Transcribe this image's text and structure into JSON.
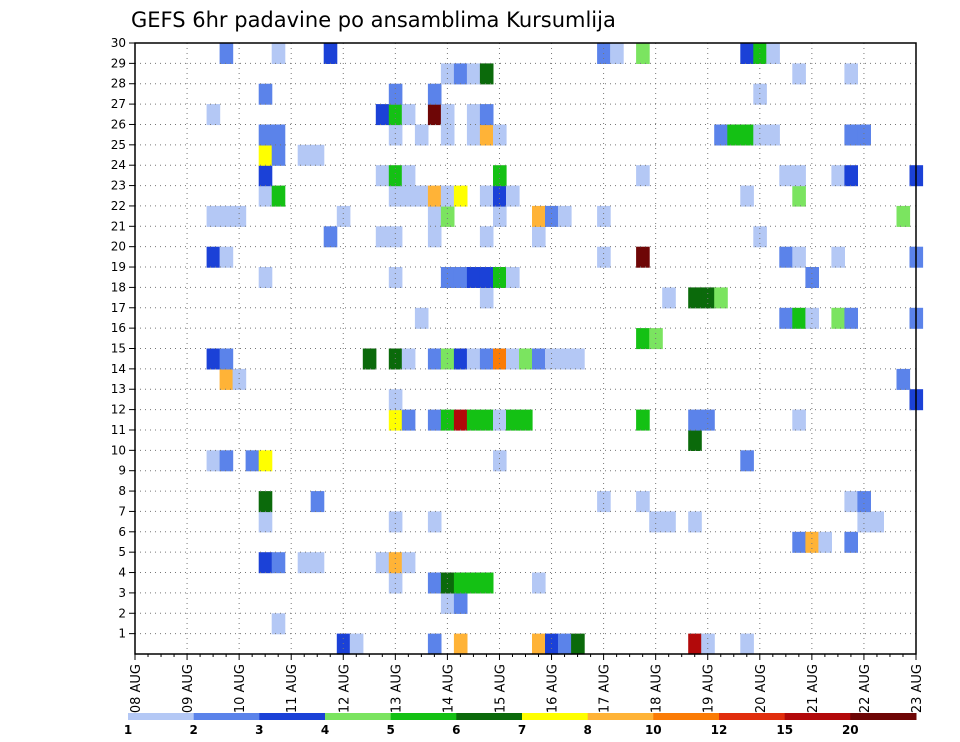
{
  "chart_data": {
    "type": "heatmap",
    "title": "GEFS 6hr padavine po ansamblima Kursumlija",
    "xlabel": "",
    "ylabel": "",
    "x_ticks": [
      "08 AUG",
      "09 AUG",
      "10 AUG",
      "11 AUG",
      "12 AUG",
      "13 AUG",
      "14 AUG",
      "15 AUG",
      "16 AUG",
      "17 AUG",
      "18 AUG",
      "19 AUG",
      "20 AUG",
      "21 AUG",
      "22 AUG",
      "23 AUG"
    ],
    "y_ticks": [
      1,
      2,
      3,
      4,
      5,
      6,
      7,
      8,
      9,
      10,
      11,
      12,
      13,
      14,
      15,
      16,
      17,
      18,
      19,
      20,
      21,
      22,
      23,
      24,
      25,
      26,
      27,
      28,
      29,
      30
    ],
    "xlim_days": [
      0,
      15
    ],
    "ylim": [
      0,
      30
    ],
    "grid": true,
    "colorbar": {
      "levels": [
        1,
        2,
        3,
        4,
        5,
        6,
        7,
        8,
        10,
        12,
        15,
        20
      ],
      "colors": [
        "#b4c8f5",
        "#5b83ea",
        "#1b41d7",
        "#7be460",
        "#14c114",
        "#0b6a0b",
        "#ffff00",
        "#ffb337",
        "#fb7c06",
        "#e12e0d",
        "#b2090a",
        "#6e0606"
      ]
    },
    "cells": [
      [
        4,
        0,
        2
      ],
      [
        4.25,
        0,
        0
      ],
      [
        5.75,
        0,
        1
      ],
      [
        6.25,
        0,
        7
      ],
      [
        7.75,
        0,
        7
      ],
      [
        8,
        0,
        2
      ],
      [
        8.25,
        0,
        1
      ],
      [
        8.5,
        0,
        5
      ],
      [
        10.75,
        0,
        10
      ],
      [
        11,
        0,
        0
      ],
      [
        11.75,
        0,
        0
      ],
      [
        2.75,
        1,
        0
      ],
      [
        6,
        2,
        0
      ],
      [
        6.25,
        2,
        1
      ],
      [
        5,
        3,
        0
      ],
      [
        5.75,
        3,
        1
      ],
      [
        6,
        3,
        5
      ],
      [
        6.25,
        3,
        4
      ],
      [
        6.5,
        3,
        4
      ],
      [
        6.75,
        3,
        4
      ],
      [
        7.75,
        3,
        0
      ],
      [
        2.5,
        4,
        2
      ],
      [
        2.75,
        4,
        1
      ],
      [
        3.25,
        4,
        0
      ],
      [
        3.5,
        4,
        0
      ],
      [
        4.75,
        4,
        0
      ],
      [
        5,
        4,
        7
      ],
      [
        5.25,
        4,
        0
      ],
      [
        12.75,
        5,
        1
      ],
      [
        13,
        5,
        7
      ],
      [
        13.25,
        5,
        0
      ],
      [
        13.75,
        5,
        1
      ],
      [
        2.5,
        6,
        0
      ],
      [
        5,
        6,
        0
      ],
      [
        5.75,
        6,
        0
      ],
      [
        10,
        6,
        0
      ],
      [
        10.25,
        6,
        0
      ],
      [
        10.75,
        6,
        0
      ],
      [
        14,
        6,
        0
      ],
      [
        14.25,
        6,
        0
      ],
      [
        2.5,
        7,
        5
      ],
      [
        3.5,
        7,
        1
      ],
      [
        9,
        7,
        0
      ],
      [
        9.75,
        7,
        0
      ],
      [
        13.75,
        7,
        0
      ],
      [
        14,
        7,
        1
      ],
      [
        1.5,
        9,
        0
      ],
      [
        1.75,
        9,
        1
      ],
      [
        2.25,
        9,
        1
      ],
      [
        2.5,
        9,
        6
      ],
      [
        7,
        9,
        0
      ],
      [
        11.75,
        9,
        1
      ],
      [
        10.75,
        10,
        5
      ],
      [
        5,
        11,
        6
      ],
      [
        5.25,
        11,
        1
      ],
      [
        5.75,
        11,
        1
      ],
      [
        6,
        11,
        4
      ],
      [
        6.25,
        11,
        10
      ],
      [
        6.5,
        11,
        4
      ],
      [
        6.75,
        11,
        4
      ],
      [
        7,
        11,
        0
      ],
      [
        7.25,
        11,
        4
      ],
      [
        7.5,
        11,
        4
      ],
      [
        9.75,
        11,
        4
      ],
      [
        10.75,
        11,
        1
      ],
      [
        11,
        11,
        1
      ],
      [
        12.75,
        11,
        0
      ],
      [
        5,
        12,
        0
      ],
      [
        15,
        12,
        2
      ],
      [
        1.75,
        13,
        7
      ],
      [
        2,
        13,
        0
      ],
      [
        14.75,
        13,
        1
      ],
      [
        1.5,
        14,
        2
      ],
      [
        1.75,
        14,
        1
      ],
      [
        4.5,
        14,
        5
      ],
      [
        5,
        14,
        5
      ],
      [
        5.25,
        14,
        0
      ],
      [
        5.75,
        14,
        1
      ],
      [
        6,
        14,
        3
      ],
      [
        6.25,
        14,
        2
      ],
      [
        6.5,
        14,
        0
      ],
      [
        6.75,
        14,
        1
      ],
      [
        7,
        14,
        8
      ],
      [
        7.25,
        14,
        0
      ],
      [
        7.5,
        14,
        3
      ],
      [
        7.75,
        14,
        1
      ],
      [
        8,
        14,
        0
      ],
      [
        8.25,
        14,
        0
      ],
      [
        8.5,
        14,
        0
      ],
      [
        9.75,
        15,
        4
      ],
      [
        10,
        15,
        3
      ],
      [
        5.5,
        16,
        0
      ],
      [
        12.5,
        16,
        1
      ],
      [
        12.75,
        16,
        4
      ],
      [
        13,
        16,
        0
      ],
      [
        13.5,
        16,
        3
      ],
      [
        13.75,
        16,
        1
      ],
      [
        15,
        16,
        1
      ],
      [
        6.75,
        17,
        0
      ],
      [
        10.25,
        17,
        0
      ],
      [
        10.75,
        17,
        5
      ],
      [
        11,
        17,
        5
      ],
      [
        11.25,
        17,
        3
      ],
      [
        2.5,
        18,
        0
      ],
      [
        5,
        18,
        0
      ],
      [
        6,
        18,
        1
      ],
      [
        6.25,
        18,
        1
      ],
      [
        6.5,
        18,
        2
      ],
      [
        6.75,
        18,
        2
      ],
      [
        7,
        18,
        4
      ],
      [
        7.25,
        18,
        0
      ],
      [
        13,
        18,
        1
      ],
      [
        1.5,
        19,
        2
      ],
      [
        1.75,
        19,
        0
      ],
      [
        9,
        19,
        0
      ],
      [
        9.75,
        19,
        11
      ],
      [
        12.5,
        19,
        1
      ],
      [
        12.75,
        19,
        0
      ],
      [
        13.5,
        19,
        0
      ],
      [
        15,
        19,
        1
      ],
      [
        3.75,
        20,
        1
      ],
      [
        4.75,
        20,
        0
      ],
      [
        5,
        20,
        0
      ],
      [
        5.75,
        20,
        0
      ],
      [
        6.75,
        20,
        0
      ],
      [
        7.75,
        20,
        0
      ],
      [
        12,
        20,
        0
      ],
      [
        1.5,
        21,
        0
      ],
      [
        1.75,
        21,
        0
      ],
      [
        2,
        21,
        0
      ],
      [
        4,
        21,
        0
      ],
      [
        5.75,
        21,
        0
      ],
      [
        6,
        21,
        3
      ],
      [
        7,
        21,
        0
      ],
      [
        7.75,
        21,
        7
      ],
      [
        8,
        21,
        1
      ],
      [
        8.25,
        21,
        0
      ],
      [
        9,
        21,
        0
      ],
      [
        14.75,
        21,
        3
      ],
      [
        2.5,
        22,
        0
      ],
      [
        2.75,
        22,
        4
      ],
      [
        5,
        22,
        0
      ],
      [
        5.25,
        22,
        0
      ],
      [
        5.5,
        22,
        0
      ],
      [
        5.75,
        22,
        7
      ],
      [
        6,
        22,
        0
      ],
      [
        6.25,
        22,
        6
      ],
      [
        6.75,
        22,
        0
      ],
      [
        7,
        22,
        2
      ],
      [
        7.25,
        22,
        0
      ],
      [
        11.75,
        22,
        0
      ],
      [
        12.75,
        22,
        3
      ],
      [
        2.5,
        23,
        2
      ],
      [
        4.75,
        23,
        0
      ],
      [
        5,
        23,
        4
      ],
      [
        5.25,
        23,
        0
      ],
      [
        7,
        23,
        4
      ],
      [
        9.75,
        23,
        0
      ],
      [
        12.5,
        23,
        0
      ],
      [
        12.75,
        23,
        0
      ],
      [
        13.5,
        23,
        0
      ],
      [
        13.75,
        23,
        2
      ],
      [
        15,
        23,
        2
      ],
      [
        2.5,
        24,
        6
      ],
      [
        2.75,
        24,
        1
      ],
      [
        3.25,
        24,
        0
      ],
      [
        3.5,
        24,
        0
      ],
      [
        2.5,
        25,
        1
      ],
      [
        2.75,
        25,
        1
      ],
      [
        5,
        25,
        0
      ],
      [
        5.5,
        25,
        0
      ],
      [
        6,
        25,
        0
      ],
      [
        6.5,
        25,
        0
      ],
      [
        6.75,
        25,
        7
      ],
      [
        7,
        25,
        0
      ],
      [
        11.25,
        25,
        1
      ],
      [
        11.5,
        25,
        4
      ],
      [
        11.75,
        25,
        4
      ],
      [
        12,
        25,
        0
      ],
      [
        12.25,
        25,
        0
      ],
      [
        13.75,
        25,
        1
      ],
      [
        14,
        25,
        1
      ],
      [
        1.5,
        26,
        0
      ],
      [
        4.75,
        26,
        2
      ],
      [
        5,
        26,
        4
      ],
      [
        5.25,
        26,
        0
      ],
      [
        5.75,
        26,
        11
      ],
      [
        6,
        26,
        0
      ],
      [
        6.5,
        26,
        0
      ],
      [
        6.75,
        26,
        1
      ],
      [
        2.5,
        27,
        1
      ],
      [
        5,
        27,
        1
      ],
      [
        5.75,
        27,
        1
      ],
      [
        12,
        27,
        0
      ],
      [
        6,
        28,
        0
      ],
      [
        6.25,
        28,
        1
      ],
      [
        6.5,
        28,
        0
      ],
      [
        6.75,
        28,
        5
      ],
      [
        12.75,
        28,
        0
      ],
      [
        13.75,
        28,
        0
      ],
      [
        1.75,
        29,
        1
      ],
      [
        2.75,
        29,
        0
      ],
      [
        3.75,
        29,
        2
      ],
      [
        9,
        29,
        1
      ],
      [
        9.25,
        29,
        0
      ],
      [
        9.75,
        29,
        3
      ],
      [
        11.75,
        29,
        2
      ],
      [
        12,
        29,
        4
      ],
      [
        12.25,
        29,
        0
      ]
    ]
  }
}
